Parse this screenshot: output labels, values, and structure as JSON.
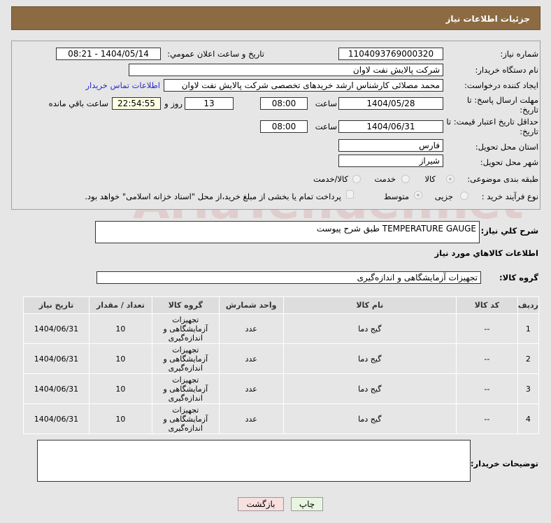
{
  "header": {
    "title": "جزئیات اطلاعات نیاز"
  },
  "form": {
    "need_number_label": "شماره نیاز:",
    "need_number": "1104093769000320",
    "announce_label": "تاریخ و ساعت اعلان عمومي:",
    "announce_value": "1404/05/14 - 08:21",
    "buyer_org_label": "نام دستگاه خریدار:",
    "buyer_org": "شرکت پالایش نفت لاوان",
    "creator_label": "ایجاد کننده درخواست:",
    "creator": "محمد مصلائی کارشناس ارشد خریدهای تخصصی شرکت پالایش نفت لاوان",
    "contact_link": "اطلاعات تماس خریدار",
    "deadline_label": "مهلت ارسال پاسخ: تا تاریخ:",
    "deadline_date": "1404/05/28",
    "time_label": "ساعت",
    "deadline_time": "08:00",
    "days": "13",
    "days_label": "روز و",
    "remaining": "22:54:55",
    "remaining_label": "ساعت باقي مانده",
    "validity_label": "حداقل تاریخ اعتبار قیمت: تا تاریخ:",
    "validity_date": "1404/06/31",
    "validity_time": "08:00",
    "province_label": "استان محل تحویل:",
    "province": "فارس",
    "city_label": "شهر محل تحویل:",
    "city": "شیراز",
    "category_label": "طبقه بندی موضوعی:",
    "category_options": [
      "کالا",
      "خدمت",
      "کالا/خدمت"
    ],
    "category_selected": "کالا",
    "process_label": "نوع فرآیند خرید :",
    "process_options": [
      "جزیی",
      "متوسط"
    ],
    "process_selected": "متوسط",
    "payment_note": "پرداخت تمام یا بخشی از مبلغ خرید،از محل \"اسناد خزانه اسلامی\" خواهد بود."
  },
  "description": {
    "label": "شرح کلي نياز:",
    "value": "TEMPERATURE GAUGE  طبق شرح پیوست"
  },
  "goods": {
    "section_title": "اطلاعات کالاهاي مورد نياز",
    "group_label": "گروه کالا:",
    "group_value": "تجهیزات آزمایشگاهی و اندازه‌گیری"
  },
  "table": {
    "headers": [
      "ردیف",
      "کد کالا",
      "نام کالا",
      "واحد شمارش",
      "گروه کالا",
      "تعداد / مقدار",
      "تاریخ نیاز"
    ],
    "rows": [
      [
        "1",
        "--",
        "گیج دما",
        "عدد",
        "تجهیزات آزمایشگاهی و اندازه‌گیری",
        "10",
        "1404/06/31"
      ],
      [
        "2",
        "--",
        "گیج دما",
        "عدد",
        "تجهیزات آزمایشگاهی و اندازه‌گیری",
        "10",
        "1404/06/31"
      ],
      [
        "3",
        "--",
        "گیج دما",
        "عدد",
        "تجهیزات آزمایشگاهی و اندازه‌گیری",
        "10",
        "1404/06/31"
      ],
      [
        "4",
        "--",
        "گیج دما",
        "عدد",
        "تجهیزات آزمایشگاهی و اندازه‌گیری",
        "10",
        "1404/06/31"
      ]
    ]
  },
  "buyer_notes": {
    "label": "توضیحات خریدار:",
    "value": ""
  },
  "buttons": {
    "print": "چاپ",
    "back": "بازگشت"
  },
  "watermark": "AriaTender.net"
}
